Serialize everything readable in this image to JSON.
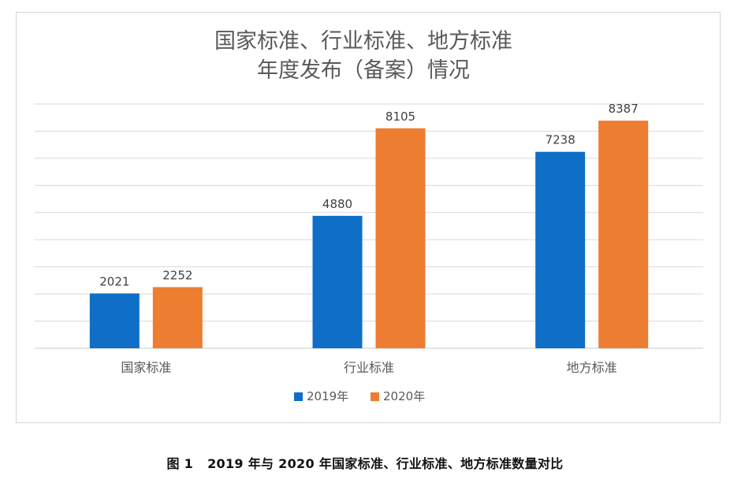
{
  "chart_data": {
    "type": "bar",
    "title_lines": [
      "国家标准、行业标准、地方标准",
      "年度发布（备案）情况"
    ],
    "categories": [
      "国家标准",
      "行业标准",
      "地方标准"
    ],
    "series": [
      {
        "name": "2019年",
        "values": [
          2021,
          4880,
          7238
        ],
        "color": "#0f6fc6"
      },
      {
        "name": "2020年",
        "values": [
          2252,
          8105,
          8387
        ],
        "color": "#ed7d31"
      }
    ],
    "xlabel": "",
    "ylabel": "",
    "ylim": [
      0,
      9000
    ],
    "gridlines": true,
    "y_axis_labels_shown": false,
    "legend_position": "bottom-center"
  },
  "caption": {
    "figure_number": "图 1",
    "text": "2019 年与 2020 年国家标准、行业标准、地方标准数量对比"
  }
}
